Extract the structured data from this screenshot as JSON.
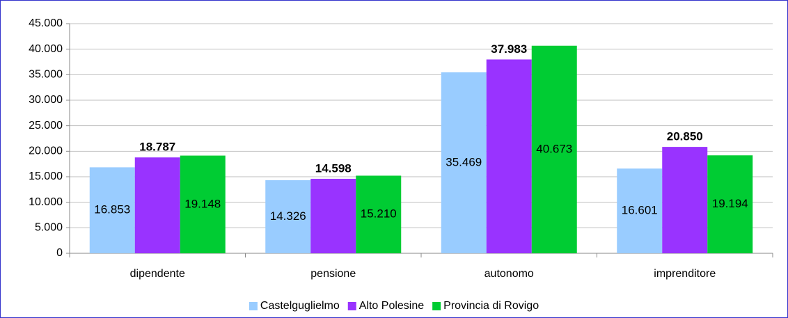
{
  "chart_data": {
    "type": "bar",
    "categories": [
      "dipendente",
      "pensione",
      "autonomo",
      "imprenditore"
    ],
    "series": [
      {
        "name": "Castelguglielmo",
        "color": "#99ccff",
        "values": [
          16853,
          14326,
          35469,
          16601
        ],
        "value_labels": [
          "16.853",
          "14.326",
          "35.469",
          "16.601"
        ]
      },
      {
        "name": "Alto Polesine",
        "color": "#9933ff",
        "values": [
          18787,
          14598,
          37983,
          20850
        ],
        "value_labels": [
          "18.787",
          "14.598",
          "37.983",
          "20.850"
        ]
      },
      {
        "name": "Provincia di Rovigo",
        "color": "#00cc33",
        "values": [
          19148,
          15210,
          40673,
          19194
        ],
        "value_labels": [
          "19.148",
          "15.210",
          "40.673",
          "19.194"
        ]
      }
    ],
    "ylim": [
      0,
      45000
    ],
    "yticks": [
      0,
      {
        "value": 5000,
        "label": "5.000"
      },
      {
        "value": 10000,
        "label": "10.000"
      },
      {
        "value": 15000,
        "label": "15.000"
      },
      {
        "value": 20000,
        "label": "20.000"
      },
      {
        "value": 25000,
        "label": "25.000"
      },
      {
        "value": 30000,
        "label": "30.000"
      },
      {
        "value": 35000,
        "label": "35.000"
      },
      {
        "value": 40000,
        "label": "40.000"
      },
      {
        "value": 45000,
        "label": "45.000"
      }
    ],
    "grid": true
  }
}
